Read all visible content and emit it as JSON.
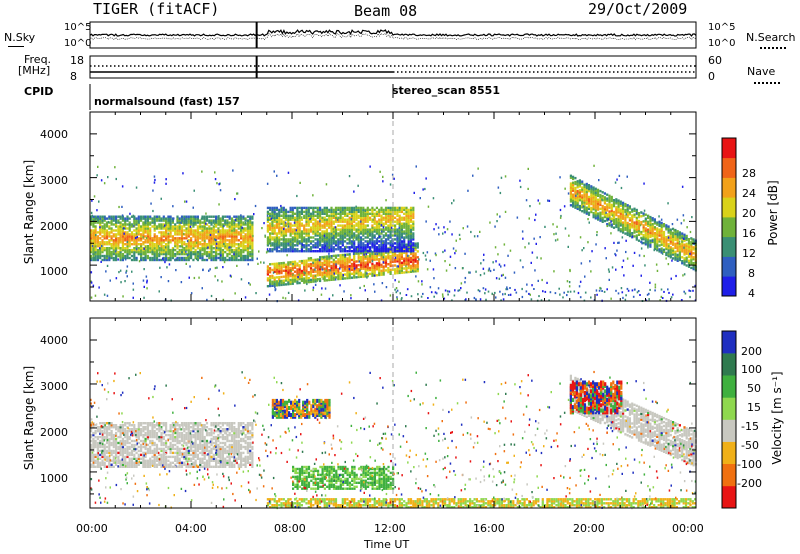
{
  "header": {
    "station": "TIGER (fitACF)",
    "beam": "Beam 08",
    "date": "29/Oct/2009"
  },
  "strips": {
    "nsky_label": "N.Sky",
    "nsky_ticks": [
      "10^5",
      "10^0"
    ],
    "nsearch_label": "N.Search",
    "nsearch_ticks": [
      "10^5",
      "10^0"
    ],
    "freq_label_1": "Freq.",
    "freq_label_2": "[MHz]",
    "freq_ticks": [
      "18",
      "8"
    ],
    "nave_label": "Nave",
    "nave_ticks": [
      "60",
      "0"
    ],
    "cpid_label": "CPID",
    "cpid_modes": [
      {
        "name": "normalsound (fast) 157",
        "start_ut": 0.0
      },
      {
        "name": "stereo_scan 8551",
        "start_ut": 12.0
      }
    ]
  },
  "chart_data": [
    {
      "type": "heatmap",
      "name": "power",
      "ylabel": "Slant Range [km]",
      "xlabel": "",
      "x_range_ut_hours": [
        0,
        24
      ],
      "ylim": [
        180,
        4500
      ],
      "y_ticks": [
        1000,
        2000,
        3000,
        4000
      ],
      "x_tick_labels": [
        "00:00",
        "04:00",
        "08:00",
        "12:00",
        "16:00",
        "20:00",
        "00:00"
      ],
      "colorbar": {
        "label": "Power [dB]",
        "range": [
          0,
          30
        ],
        "tick_labels": [
          "28",
          "24",
          "20",
          "16",
          "12",
          "8",
          "4"
        ],
        "colors": [
          "#1f1fe8",
          "#2f5fc0",
          "#3a8f74",
          "#6fb23a",
          "#d9d21a",
          "#f2a11a",
          "#f06418",
          "#e81414"
        ]
      },
      "data_gaps_ut": [
        6.6,
        12.0
      ],
      "echo_regions": [
        {
          "label": "",
          "ut": [
            0.0,
            6.6
          ],
          "range_km": [
            1100,
            2100
          ],
          "power_db": 22
        },
        {
          "label": "",
          "ut": [
            7.0,
            13.0
          ],
          "range_km": [
            600,
            1300
          ],
          "power_db": 26
        },
        {
          "label": "",
          "ut": [
            7.0,
            12.8
          ],
          "range_km": [
            1300,
            2300
          ],
          "power_db": 20
        },
        {
          "label": "",
          "ut": [
            19.0,
            24.0
          ],
          "range_km": [
            900,
            3100
          ],
          "power_db": 22
        }
      ]
    },
    {
      "type": "heatmap",
      "name": "velocity",
      "ylabel": "Slant Range [km]",
      "xlabel": "Time UT",
      "x_range_ut_hours": [
        0,
        24
      ],
      "ylim": [
        180,
        4500
      ],
      "y_ticks": [
        1000,
        2000,
        3000,
        4000
      ],
      "x_tick_labels": [
        "00:00",
        "04:00",
        "08:00",
        "12:00",
        "16:00",
        "20:00",
        "00:00"
      ],
      "colorbar": {
        "label": "Velocity [m s⁻¹]",
        "range": [
          -250,
          250
        ],
        "tick_labels": [
          "200",
          "100",
          "50",
          "15",
          "-15",
          "-50",
          "-100",
          "-200"
        ],
        "colors": [
          "#1f2fc0",
          "#2f7a4f",
          "#3fb03f",
          "#8fd84f",
          "#c8c8c0",
          "#f0b018",
          "#f07010",
          "#e81414"
        ]
      },
      "data_gaps_ut": [
        6.6,
        12.0
      ],
      "echo_regions": [
        {
          "label": "",
          "ut": [
            0.0,
            6.6
          ],
          "range_km": [
            1100,
            2100
          ],
          "velocity_ms": 0
        },
        {
          "label": "",
          "ut": [
            8.0,
            12.0
          ],
          "range_km": [
            600,
            1100
          ],
          "velocity_ms": 60
        },
        {
          "label": "",
          "ut": [
            19.0,
            24.0
          ],
          "range_km": [
            1000,
            2400
          ],
          "velocity_ms": 0
        },
        {
          "label": "",
          "ut": [
            7.0,
            24.0
          ],
          "range_km": [
            180,
            400
          ],
          "velocity_ms": 40
        }
      ]
    }
  ]
}
